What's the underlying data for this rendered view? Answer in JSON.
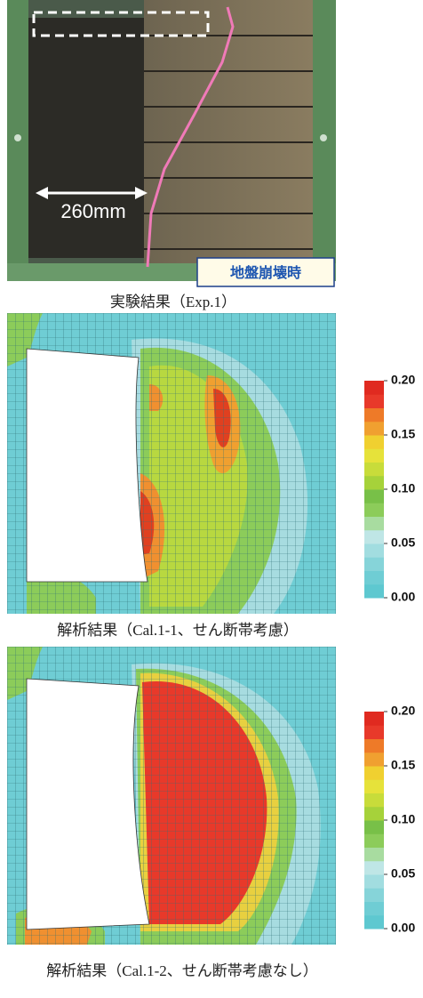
{
  "photo": {
    "dimension_label": "260mm",
    "stage_label": "地盤崩壊時",
    "caption": "実験結果（Exp.1）"
  },
  "panels": [
    {
      "caption": "解析結果（Cal.1-1、せん断帯考慮）",
      "colorbar": {
        "ticks": [
          {
            "value": 0.2,
            "label": "0.20"
          },
          {
            "value": 0.15,
            "label": "0.15"
          },
          {
            "value": 0.1,
            "label": "0.10"
          },
          {
            "value": 0.05,
            "label": "0.05"
          },
          {
            "value": 0,
            "label": "0.00"
          }
        ]
      }
    },
    {
      "caption": "解析結果（Cal.1-2、せん断帯考慮なし）",
      "colorbar": {
        "ticks": [
          {
            "value": 0.2,
            "label": "0.20"
          },
          {
            "value": 0.15,
            "label": "0.15"
          },
          {
            "value": 0.1,
            "label": "0.10"
          },
          {
            "value": 0.05,
            "label": "0.05"
          },
          {
            "value": 0,
            "label": "0.00"
          }
        ]
      }
    }
  ]
}
